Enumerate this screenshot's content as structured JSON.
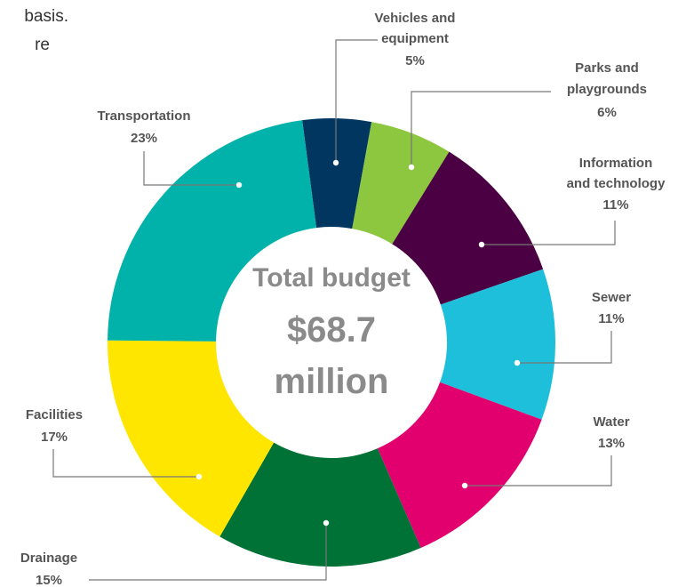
{
  "fragments": [
    "basis.",
    "re"
  ],
  "chart_data": {
    "type": "donut",
    "center_text": [
      "Total budget",
      "$68.7",
      "million"
    ],
    "categories": [
      "Vehicles and equipment",
      "Parks and playgrounds",
      "Information and technology",
      "Sewer",
      "Water",
      "Drainage",
      "Facilities",
      "Transportation"
    ],
    "values": [
      5,
      6,
      11,
      11,
      13,
      15,
      17,
      23
    ],
    "value_labels": [
      "5%",
      "6%",
      "11%",
      "11%",
      "13%",
      "15%",
      "17%",
      "23%"
    ],
    "colors": [
      "#003660",
      "#8dc63f",
      "#4a0042",
      "#1ebfda",
      "#e2006e",
      "#007236",
      "#ffe600",
      "#00b2a9"
    ]
  }
}
